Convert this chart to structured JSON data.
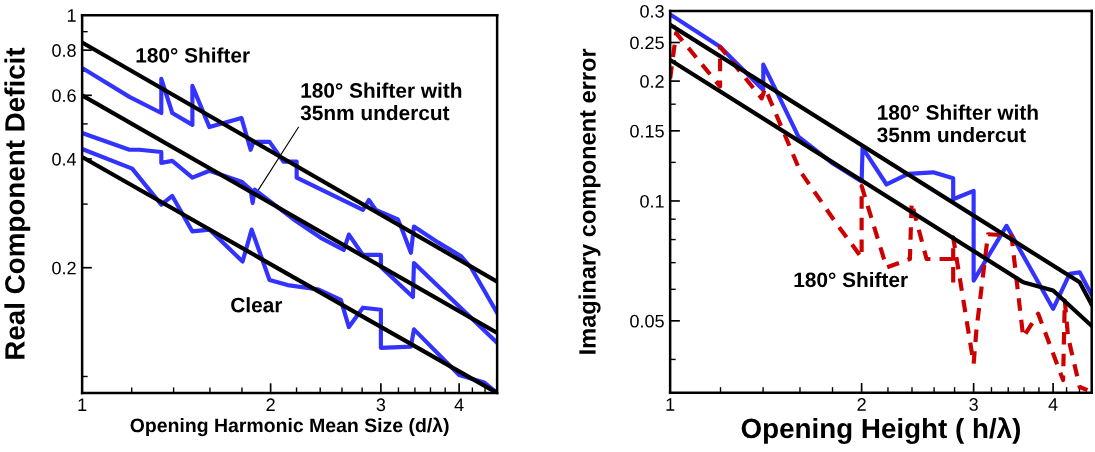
{
  "chart_data": [
    {
      "type": "line",
      "xlabel": "Opening Harmonic Mean Size (d/λ)",
      "ylabel": "Real Component Deficit",
      "log": "xy",
      "xlim": [
        1,
        4.6
      ],
      "ylim": [
        0.09,
        1
      ],
      "xticks": [
        1,
        2,
        3,
        4,
        {
          "value": 1.2,
          "label": null
        },
        {
          "value": 1.4,
          "label": null
        },
        {
          "value": 1.6,
          "label": null
        },
        {
          "value": 1.8,
          "label": null
        },
        {
          "value": 2.2,
          "label": null
        },
        {
          "value": 2.4,
          "label": null
        },
        {
          "value": 2.6,
          "label": null
        },
        {
          "value": 2.8,
          "label": null
        },
        {
          "value": 3.2,
          "label": null
        },
        {
          "value": 3.4,
          "label": null
        },
        {
          "value": 3.6,
          "label": null
        },
        {
          "value": 3.8,
          "label": null
        },
        {
          "value": 4.2,
          "label": null
        },
        {
          "value": 4.4,
          "label": null
        }
      ],
      "yticks": [
        0.2,
        0.4,
        0.6,
        0.8,
        1,
        {
          "value": 0.1,
          "label": null
        },
        {
          "value": 0.3,
          "label": null
        },
        {
          "value": 0.5,
          "label": null
        },
        {
          "value": 0.7,
          "label": null
        },
        {
          "value": 0.9,
          "label": null
        }
      ],
      "series": [
        {
          "color": "#3333ff",
          "line_style": "solid",
          "x": [
            1.0,
            1.19,
            1.338,
            1.338,
            1.393,
            1.5,
            1.5,
            1.597,
            1.797,
            1.858,
            1.878,
            1.992,
            2.098,
            2.201,
            2.201,
            2.808,
            2.87,
            2.945,
            3.194,
            3.229,
            3.35,
            3.388,
            3.702,
            4.03,
            4.18,
            4.6
          ],
          "values": [
            0.714,
            0.594,
            0.536,
            0.666,
            0.536,
            0.497,
            0.637,
            0.49,
            0.519,
            0.424,
            0.446,
            0.446,
            0.393,
            0.393,
            0.355,
            0.289,
            0.308,
            0.289,
            0.272,
            0.26,
            0.22,
            0.26,
            0.235,
            0.215,
            0.2,
            0.15
          ]
        },
        {
          "color": "#3333ff",
          "line_style": "solid",
          "x": [
            1.0,
            1.19,
            1.234,
            1.338,
            1.338,
            1.393,
            1.5,
            1.597,
            1.797,
            1.858,
            1.872,
            1.886,
            2.177,
            2.405,
            2.617,
            2.667,
            2.808,
            3.0,
            3.0,
            3.375,
            3.388,
            4.6
          ],
          "values": [
            0.472,
            0.424,
            0.424,
            0.418,
            0.39,
            0.395,
            0.355,
            0.371,
            0.346,
            0.329,
            0.302,
            0.329,
            0.272,
            0.242,
            0.224,
            0.247,
            0.217,
            0.217,
            0.201,
            0.166,
            0.206,
            0.124
          ]
        },
        {
          "color": "#3333ff",
          "line_style": "solid",
          "x": [
            1.0,
            1.202,
            1.338,
            1.393,
            1.5,
            1.597,
            1.804,
            1.865,
            1.992,
            2.129,
            2.387,
            2.589,
            2.667,
            2.808,
            3.0,
            3.0,
            3.35,
            3.388,
            4.0,
            4.385,
            4.6
          ],
          "values": [
            0.426,
            0.376,
            0.299,
            0.316,
            0.252,
            0.255,
            0.208,
            0.255,
            0.185,
            0.179,
            0.174,
            0.163,
            0.137,
            0.155,
            0.153,
            0.12,
            0.121,
            0.135,
            0.101,
            0.0963,
            0.09
          ]
        },
        {
          "color": "#000000",
          "line_style": "solid",
          "x": [
            1.0,
            4.6
          ],
          "values": [
            0.84,
            0.183
          ]
        },
        {
          "color": "#000000",
          "line_style": "solid",
          "x": [
            1.0,
            4.6
          ],
          "values": [
            0.6,
            0.132
          ]
        },
        {
          "color": "#000000",
          "line_style": "solid",
          "x": [
            1.0,
            4.6
          ],
          "values": [
            0.405,
            0.09
          ]
        }
      ],
      "annotations": [
        "180° Shifter",
        {
          "text": "180° Shifter with\n35nm undercut",
          "x": 1.913,
          "y": 0.329
        },
        "Clear"
      ]
    },
    {
      "type": "line",
      "xlabel": "Opening Height ( h/λ)",
      "ylabel": "Imaginary component error",
      "log": "xy",
      "xlim": [
        1,
        4.6
      ],
      "ylim": [
        0.033,
        0.3
      ],
      "xticks": [
        1,
        2,
        3,
        4,
        {
          "value": 1.2,
          "label": null
        },
        {
          "value": 1.4,
          "label": null
        },
        {
          "value": 1.6,
          "label": null
        },
        {
          "value": 1.8,
          "label": null
        },
        {
          "value": 2.2,
          "label": null
        },
        {
          "value": 2.4,
          "label": null
        },
        {
          "value": 2.6,
          "label": null
        },
        {
          "value": 2.8,
          "label": null
        },
        {
          "value": 3.2,
          "label": null
        },
        {
          "value": 3.4,
          "label": null
        },
        {
          "value": 3.6,
          "label": null
        },
        {
          "value": 3.8,
          "label": null
        },
        {
          "value": 4.2,
          "label": null
        },
        {
          "value": 4.4,
          "label": null
        }
      ],
      "yticks": [
        0.05,
        0.1,
        0.15,
        0.2,
        0.25,
        0.3,
        {
          "value": 0.04,
          "label": null
        },
        {
          "value": 0.06,
          "label": null
        },
        {
          "value": 0.07,
          "label": null
        },
        {
          "value": 0.08,
          "label": null
        },
        {
          "value": 0.09,
          "label": null
        },
        {
          "value": 0.125,
          "label": null
        },
        {
          "value": 0.175,
          "label": null
        },
        {
          "value": 0.225,
          "label": null
        },
        {
          "value": 0.275,
          "label": null
        }
      ],
      "series": [
        {
          "color": "#3333ff",
          "line_style": "solid",
          "x": [
            1.0,
            1.198,
            1.401,
            1.401,
            1.471,
            1.591,
            1.805,
            2.0,
            2.007,
            2.189,
            2.367,
            2.591,
            2.786,
            2.786,
            3.0,
            3.0,
            3.379,
            4.0,
            4.247,
            4.404,
            4.59
          ],
          "values": [
            0.294,
            0.244,
            0.19,
            0.22,
            0.188,
            0.145,
            0.124,
            0.112,
            0.136,
            0.11,
            0.117,
            0.118,
            0.114,
            0.101,
            0.106,
            0.0631,
            0.0866,
            0.0536,
            0.0656,
            0.0662,
            0.0584
          ]
        },
        {
          "color": "#cc0000",
          "line_style": "dashed",
          "x": [
            1.0,
            1.022,
            1.198,
            1.198,
            1.393,
            1.41,
            1.6,
            1.827,
            2.0,
            2.0,
            2.189,
            2.382,
            2.397,
            2.53,
            2.786,
            2.786,
            2.786,
            3.0,
            3.03,
            3.16,
            3.44,
            3.59,
            3.79,
            4.147,
            4.173,
            4.223,
            4.404,
            4.53
          ],
          "values": [
            0.203,
            0.264,
            0.194,
            0.244,
            0.181,
            0.192,
            0.119,
            0.0876,
            0.0721,
            0.109,
            0.0681,
            0.0715,
            0.099,
            0.0715,
            0.0715,
            0.0613,
            0.081,
            0.039,
            0.0473,
            0.0825,
            0.0818,
            0.0455,
            0.0521,
            0.0355,
            0.0562,
            0.0455,
            0.0341,
            0.0335
          ]
        },
        {
          "color": "#000000",
          "line_style": "solid",
          "x": [
            1.0,
            4.404,
            4.59
          ],
          "values": [
            0.277,
            0.0625,
            0.0552
          ]
        },
        {
          "color": "#000000",
          "line_style": "solid",
          "x": [
            1.0,
            3.59,
            4.0,
            4.59
          ],
          "values": [
            0.226,
            0.0625,
            0.0596,
            0.0487
          ]
        }
      ],
      "annotations": [
        "180° Shifter with\n35nm undercut",
        "180° Shifter"
      ]
    }
  ]
}
